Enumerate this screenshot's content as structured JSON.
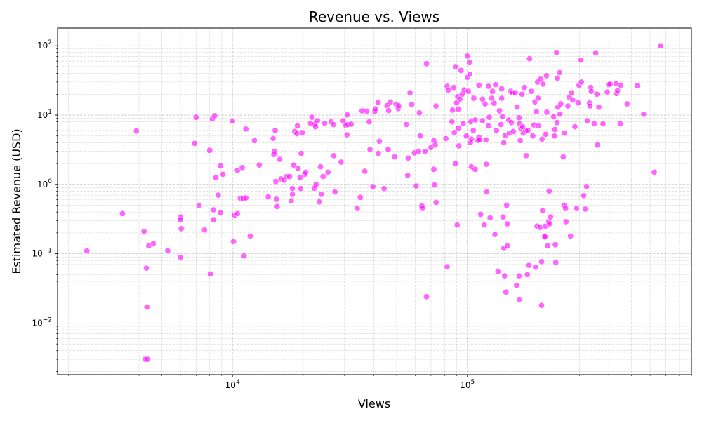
{
  "chart_data": {
    "type": "scatter",
    "title": "Revenue vs. Views",
    "xlabel": "Views",
    "ylabel": "Estimated Revenue (USD)",
    "xscale": "log",
    "yscale": "log",
    "xlim": [
      1800,
      900000
    ],
    "ylim": [
      0.0018,
      180
    ],
    "x_ticks": [
      {
        "value": 10000,
        "base": "10",
        "exp": "4"
      },
      {
        "value": 100000,
        "base": "10",
        "exp": "5"
      }
    ],
    "y_ticks": [
      {
        "value": 0.01,
        "base": "10",
        "exp": "−2"
      },
      {
        "value": 0.1,
        "base": "10",
        "exp": "−1"
      },
      {
        "value": 1,
        "base": "10",
        "exp": "0"
      },
      {
        "value": 10,
        "base": "10",
        "exp": "1"
      },
      {
        "value": 100,
        "base": "10",
        "exp": "2"
      }
    ],
    "grid": "major and minor, dashed",
    "marker_color": "#ff00ff",
    "points": [
      [
        2400,
        0.11
      ],
      [
        3400,
        0.38
      ],
      [
        3900,
        5.9
      ],
      [
        4200,
        0.21
      ],
      [
        4250,
        0.003
      ],
      [
        4300,
        0.062
      ],
      [
        4320,
        0.017
      ],
      [
        4350,
        0.003
      ],
      [
        4400,
        0.13
      ],
      [
        4600,
        0.14
      ],
      [
        5300,
        0.11
      ],
      [
        6000,
        0.34
      ],
      [
        6000,
        0.31
      ],
      [
        6050,
        0.23
      ],
      [
        6000,
        0.089
      ],
      [
        7000,
        9.3
      ],
      [
        6900,
        3.9
      ],
      [
        7200,
        0.5
      ],
      [
        7600,
        0.22
      ],
      [
        8000,
        3.1
      ],
      [
        8050,
        0.051
      ],
      [
        8200,
        8.8
      ],
      [
        8400,
        9.8
      ],
      [
        8300,
        0.43
      ],
      [
        8300,
        0.31
      ],
      [
        8500,
        1.25
      ],
      [
        8700,
        0.7
      ],
      [
        8900,
        1.85
      ],
      [
        8900,
        0.39
      ],
      [
        9100,
        1.4
      ],
      [
        10000,
        8.2
      ],
      [
        10100,
        0.15
      ],
      [
        10200,
        0.36
      ],
      [
        10500,
        1.6
      ],
      [
        10500,
        0.38
      ],
      [
        10800,
        0.63
      ],
      [
        11000,
        1.75
      ],
      [
        11100,
        0.62
      ],
      [
        11200,
        0.093
      ],
      [
        11400,
        6.3
      ],
      [
        11400,
        0.64
      ],
      [
        11900,
        0.18
      ],
      [
        12400,
        4.3
      ],
      [
        13000,
        1.9
      ],
      [
        14200,
        0.66
      ],
      [
        14900,
        4.6
      ],
      [
        15000,
        2.7
      ],
      [
        15100,
        3.0
      ],
      [
        15200,
        6.0
      ],
      [
        15300,
        1.1
      ],
      [
        15400,
        0.61
      ],
      [
        15500,
        0.48
      ],
      [
        15900,
        2.3
      ],
      [
        16100,
        1.2
      ],
      [
        16600,
        1.15
      ],
      [
        17000,
        1.3
      ],
      [
        17500,
        1.3
      ],
      [
        17800,
        0.58
      ],
      [
        18000,
        0.72
      ],
      [
        18000,
        0.87
      ],
      [
        18200,
        1.9
      ],
      [
        18400,
        5.8
      ],
      [
        18800,
        5.4
      ],
      [
        18900,
        7.0
      ],
      [
        19000,
        1.7
      ],
      [
        19400,
        1.25
      ],
      [
        19800,
        5.6
      ],
      [
        19600,
        2.8
      ],
      [
        19500,
        0.87
      ],
      [
        20300,
        1.4
      ],
      [
        20500,
        1.5
      ],
      [
        21500,
        7.6
      ],
      [
        21800,
        9.3
      ],
      [
        22400,
        7.4
      ],
      [
        22300,
        0.88
      ],
      [
        22600,
        6.8
      ],
      [
        22700,
        1.0
      ],
      [
        23000,
        8.3
      ],
      [
        23400,
        0.56
      ],
      [
        23700,
        1.8
      ],
      [
        23900,
        0.72
      ],
      [
        24300,
        1.3
      ],
      [
        24700,
        7.6
      ],
      [
        25500,
        1.5
      ],
      [
        26300,
        8.0
      ],
      [
        27000,
        2.6
      ],
      [
        26900,
        7.3
      ],
      [
        27300,
        0.78
      ],
      [
        29000,
        2.1
      ],
      [
        29600,
        8.3
      ],
      [
        30400,
        7.1
      ],
      [
        30800,
        10.1
      ],
      [
        30700,
        5.2
      ],
      [
        31000,
        7.3
      ],
      [
        32000,
        7.4
      ],
      [
        34000,
        0.45
      ],
      [
        35000,
        0.65
      ],
      [
        35600,
        11.5
      ],
      [
        36600,
        1.55
      ],
      [
        37300,
        11.4
      ],
      [
        38200,
        8.0
      ],
      [
        38500,
        3.2
      ],
      [
        39600,
        0.93
      ],
      [
        40400,
        11.3
      ],
      [
        40600,
        12.3
      ],
      [
        41700,
        15.2
      ],
      [
        41800,
        2.8
      ],
      [
        42200,
        4.2
      ],
      [
        44200,
        0.87
      ],
      [
        45500,
        13.7
      ],
      [
        46000,
        3.2
      ],
      [
        46200,
        11.6
      ],
      [
        47000,
        15.5
      ],
      [
        49000,
        2.5
      ],
      [
        49700,
        14.3
      ],
      [
        50800,
        12.4
      ],
      [
        51000,
        13.6
      ],
      [
        55000,
        7.3
      ],
      [
        55700,
        1.35
      ],
      [
        56000,
        2.4
      ],
      [
        57000,
        21
      ],
      [
        58000,
        14.2
      ],
      [
        59500,
        2.85
      ],
      [
        60500,
        0.95
      ],
      [
        62000,
        3.0
      ],
      [
        62500,
        10.8
      ],
      [
        63000,
        5.0
      ],
      [
        64000,
        0.49
      ],
      [
        64500,
        0.45
      ],
      [
        66000,
        3.0
      ],
      [
        67000,
        0.024
      ],
      [
        67000,
        55
      ],
      [
        70000,
        3.4
      ],
      [
        72000,
        4.3
      ],
      [
        72000,
        1.65
      ],
      [
        72500,
        0.98
      ],
      [
        73000,
        3.7
      ],
      [
        73500,
        13.5
      ],
      [
        73600,
        0.55
      ],
      [
        81000,
        4.6
      ],
      [
        82000,
        26
      ],
      [
        82000,
        0.065
      ],
      [
        83000,
        23
      ],
      [
        86000,
        8.0
      ],
      [
        86500,
        11.8
      ],
      [
        87500,
        25
      ],
      [
        88000,
        5.6
      ],
      [
        89000,
        2.0
      ],
      [
        89000,
        50
      ],
      [
        90000,
        15
      ],
      [
        90500,
        0.26
      ],
      [
        91000,
        18.5
      ],
      [
        91500,
        12.2
      ],
      [
        91600,
        6.5
      ],
      [
        92000,
        3.6
      ],
      [
        93000,
        17
      ],
      [
        94000,
        44
      ],
      [
        95000,
        20
      ],
      [
        96000,
        7.5
      ],
      [
        97000,
        23
      ],
      [
        99000,
        5.0
      ],
      [
        100000,
        71
      ],
      [
        100000,
        35
      ],
      [
        101000,
        22
      ],
      [
        102000,
        58
      ],
      [
        102500,
        39
      ],
      [
        103000,
        4.0
      ],
      [
        103500,
        8.0
      ],
      [
        104000,
        4.5
      ],
      [
        104000,
        1.8
      ],
      [
        106000,
        6.0
      ],
      [
        106500,
        17.5
      ],
      [
        108000,
        1.65
      ],
      [
        108000,
        8.5
      ],
      [
        112000,
        27
      ],
      [
        111000,
        4.3
      ],
      [
        112000,
        4.8
      ],
      [
        113000,
        4.4
      ],
      [
        114000,
        0.37
      ],
      [
        116000,
        17
      ],
      [
        116000,
        8.3
      ],
      [
        118000,
        0.26
      ],
      [
        119000,
        14.5
      ],
      [
        120000,
        4.4
      ],
      [
        120500,
        1.95
      ],
      [
        121000,
        0.78
      ],
      [
        123000,
        26
      ],
      [
        123000,
        7.0
      ],
      [
        124000,
        9.3
      ],
      [
        125000,
        0.33
      ],
      [
        127000,
        17.5
      ],
      [
        128000,
        22
      ],
      [
        130000,
        14.8
      ],
      [
        131000,
        0.19
      ],
      [
        132000,
        27.5
      ],
      [
        133000,
        6.0
      ],
      [
        135000,
        0.055
      ],
      [
        137000,
        11.5
      ],
      [
        139000,
        7.3
      ],
      [
        140000,
        24
      ],
      [
        140000,
        17.5
      ],
      [
        141000,
        9.5
      ],
      [
        142000,
        0.34
      ],
      [
        143000,
        4.0
      ],
      [
        143000,
        0.12
      ],
      [
        144000,
        0.048
      ],
      [
        145000,
        5.1
      ],
      [
        146000,
        0.028
      ],
      [
        147000,
        0.5
      ],
      [
        148000,
        0.27
      ],
      [
        148000,
        0.13
      ],
      [
        150000,
        8.5
      ],
      [
        151000,
        5.5
      ],
      [
        153000,
        22
      ],
      [
        154000,
        7.8
      ],
      [
        155000,
        21
      ],
      [
        157000,
        5.8
      ],
      [
        160000,
        21
      ],
      [
        162000,
        0.035
      ],
      [
        163000,
        13
      ],
      [
        166000,
        0.048
      ],
      [
        166000,
        9.2
      ],
      [
        166500,
        0.022
      ],
      [
        167000,
        7.5
      ],
      [
        168000,
        4.3
      ],
      [
        169000,
        6.5
      ],
      [
        171000,
        20
      ],
      [
        172000,
        6.8
      ],
      [
        173000,
        5.5
      ],
      [
        175000,
        25
      ],
      [
        177000,
        6.0
      ],
      [
        178000,
        2.6
      ],
      [
        180000,
        0.05
      ],
      [
        181000,
        6.0
      ],
      [
        183000,
        0.068
      ],
      [
        184000,
        65
      ],
      [
        187000,
        22
      ],
      [
        190000,
        5.0
      ],
      [
        192000,
        7.2
      ],
      [
        194000,
        15.5
      ],
      [
        195000,
        0.064
      ],
      [
        197000,
        11.2
      ],
      [
        198000,
        0.25
      ],
      [
        199000,
        30
      ],
      [
        200000,
        17.5
      ],
      [
        200500,
        7.0
      ],
      [
        204000,
        0.24
      ],
      [
        205000,
        33
      ],
      [
        207000,
        0.077
      ],
      [
        207000,
        0.018
      ],
      [
        208000,
        4.5
      ],
      [
        209000,
        0.42
      ],
      [
        210000,
        28
      ],
      [
        213000,
        0.18
      ],
      [
        214000,
        0.175
      ],
      [
        215000,
        0.25
      ],
      [
        215500,
        5.3
      ],
      [
        217000,
        37
      ],
      [
        218000,
        11
      ],
      [
        220000,
        0.13
      ],
      [
        222000,
        0.29
      ],
      [
        223000,
        0.8
      ],
      [
        224000,
        0.27
      ],
      [
        226000,
        0.34
      ],
      [
        233000,
        9.5
      ],
      [
        235000,
        5.0
      ],
      [
        236000,
        6.2
      ],
      [
        237000,
        0.135
      ],
      [
        238000,
        0.075
      ],
      [
        240000,
        80
      ],
      [
        241000,
        7.8
      ],
      [
        242000,
        34
      ],
      [
        243000,
        13
      ],
      [
        247000,
        41
      ],
      [
        248000,
        10.3
      ],
      [
        250000,
        14.5
      ],
      [
        256000,
        2.5
      ],
      [
        258000,
        0.5
      ],
      [
        259000,
        5.5
      ],
      [
        262000,
        0.45
      ],
      [
        263000,
        0.29
      ],
      [
        268000,
        13.5
      ],
      [
        272000,
        18
      ],
      [
        275000,
        0.18
      ],
      [
        278000,
        21
      ],
      [
        281000,
        16.5
      ],
      [
        287000,
        6.8
      ],
      [
        292000,
        0.45
      ],
      [
        296000,
        15
      ],
      [
        299000,
        27
      ],
      [
        305000,
        62
      ],
      [
        306000,
        30
      ],
      [
        313000,
        0.69
      ],
      [
        318000,
        0.44
      ],
      [
        322000,
        0.93
      ],
      [
        324000,
        8.3
      ],
      [
        331000,
        15
      ],
      [
        333000,
        13.5
      ],
      [
        335000,
        25
      ],
      [
        337000,
        22
      ],
      [
        347000,
        7.5
      ],
      [
        352000,
        79
      ],
      [
        356000,
        20
      ],
      [
        358000,
        3.7
      ],
      [
        363000,
        13
      ],
      [
        378000,
        7.5
      ],
      [
        394000,
        21.5
      ],
      [
        400000,
        27.5
      ],
      [
        405000,
        28
      ],
      [
        429000,
        28.5
      ],
      [
        432000,
        20.5
      ],
      [
        436000,
        22.5
      ],
      [
        448000,
        7.5
      ],
      [
        450000,
        27
      ],
      [
        479000,
        14.5
      ],
      [
        529000,
        26.5
      ],
      [
        563000,
        10.3
      ],
      [
        625000,
        1.5
      ],
      [
        665000,
        100
      ]
    ]
  }
}
